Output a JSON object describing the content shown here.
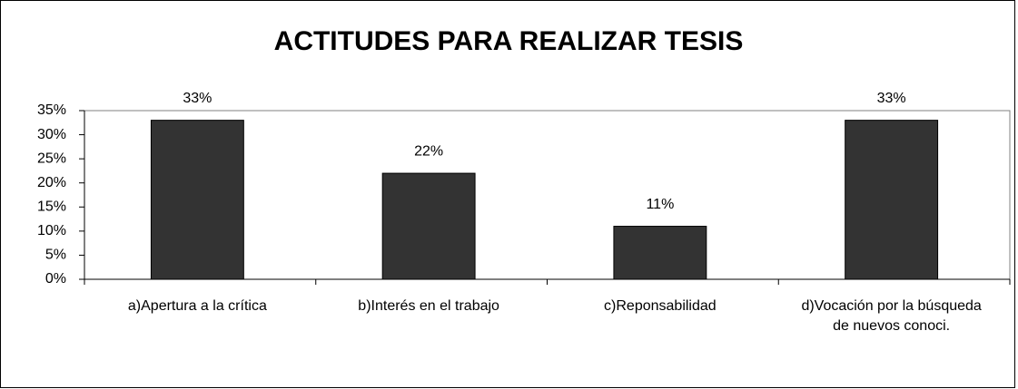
{
  "chart_data": {
    "type": "bar",
    "title": "ACTITUDES PARA REALIZAR TESIS",
    "categories": [
      "a)Apertura a la crítica",
      "b)Interés en el trabajo",
      "c)Reponsabilidad",
      "d)Vocación por la búsqueda de nuevos conoci."
    ],
    "values": [
      33,
      22,
      11,
      33
    ],
    "value_labels": [
      "33%",
      "22%",
      "11%",
      "33%"
    ],
    "color": "#333333",
    "ylim": [
      0,
      35
    ],
    "yticks": [
      {
        "value": 0,
        "label": "0%"
      },
      {
        "value": 5,
        "label": "5%"
      },
      {
        "value": 10,
        "label": "10%"
      },
      {
        "value": 15,
        "label": "15%"
      },
      {
        "value": 20,
        "label": "20%"
      },
      {
        "value": 25,
        "label": "25%"
      },
      {
        "value": 30,
        "label": "30%"
      },
      {
        "value": 35,
        "label": "35%"
      }
    ],
    "grid": false
  }
}
